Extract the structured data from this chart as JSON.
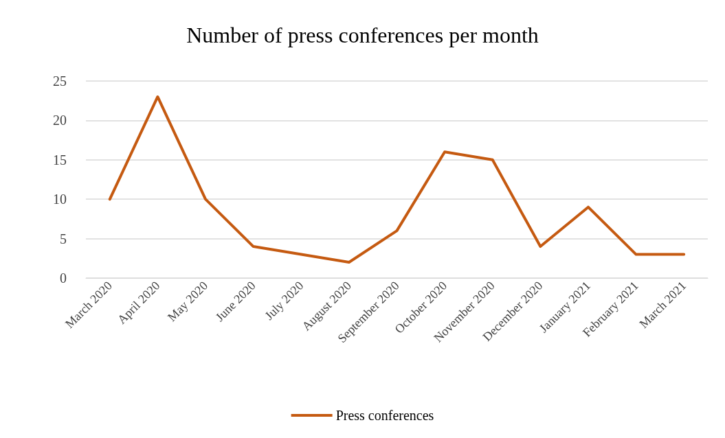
{
  "chart_data": {
    "type": "line",
    "title": "Number of press conferences per month",
    "categories": [
      "March 2020",
      "April 2020",
      "May 2020",
      "June 2020",
      "July 2020",
      "August 2020",
      "September 2020",
      "October 2020",
      "November 2020",
      "December 2020",
      "January 2021",
      "February 2021",
      "March 2021"
    ],
    "series": [
      {
        "name": "Press conferences",
        "color": "#c55a11",
        "values": [
          10,
          23,
          10,
          4,
          3,
          2,
          6,
          16,
          15,
          4,
          9,
          3,
          3
        ]
      }
    ],
    "ylim": [
      0,
      25
    ],
    "yticks": [
      0,
      5,
      10,
      15,
      20,
      25
    ],
    "grid": "y",
    "legend": "bottom",
    "marker": "none",
    "line_style": "solid"
  }
}
